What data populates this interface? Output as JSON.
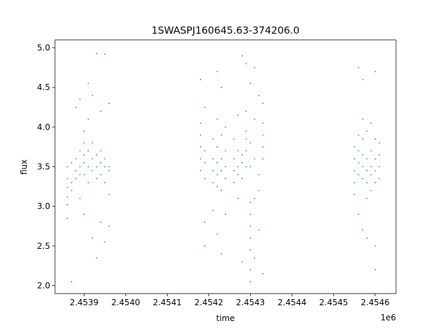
{
  "chart_data": {
    "type": "scatter",
    "title": "1SWASPJ160645.63-374206.0",
    "xlabel": "time",
    "ylabel": "flux",
    "x_offset_label": "1e6",
    "xlim": [
      2.45383,
      2.45465
    ],
    "ylim": [
      1.9,
      5.1
    ],
    "x_ticks": [
      {
        "value": 2.4539,
        "label": "2.4539"
      },
      {
        "value": 2.454,
        "label": "2.4540"
      },
      {
        "value": 2.4541,
        "label": "2.4541"
      },
      {
        "value": 2.4542,
        "label": "2.4542"
      },
      {
        "value": 2.4543,
        "label": "2.4543"
      },
      {
        "value": 2.4544,
        "label": "2.4544"
      },
      {
        "value": 2.4545,
        "label": "2.4545"
      },
      {
        "value": 2.4546,
        "label": "2.4546"
      }
    ],
    "y_ticks": [
      {
        "value": 2.0,
        "label": "2.0"
      },
      {
        "value": 2.5,
        "label": "2.5"
      },
      {
        "value": 3.0,
        "label": "3.0"
      },
      {
        "value": 3.5,
        "label": "3.5"
      },
      {
        "value": 4.0,
        "label": "4.0"
      },
      {
        "value": 4.5,
        "label": "4.5"
      },
      {
        "value": 5.0,
        "label": "5.0"
      }
    ],
    "grid": false,
    "legend": "none",
    "marker_color": "#1f77b4",
    "series": [
      {
        "points": [
          [
            2.45386,
            3.24
          ],
          [
            2.45386,
            3.12
          ],
          [
            2.45386,
            3.35
          ],
          [
            2.45386,
            3.02
          ],
          [
            2.45386,
            3.5
          ],
          [
            2.45386,
            2.85
          ],
          [
            2.45387,
            3.3
          ],
          [
            2.45387,
            3.55
          ],
          [
            2.45387,
            3.2
          ],
          [
            2.45387,
            2.05
          ],
          [
            2.45388,
            3.45
          ],
          [
            2.45388,
            3.6
          ],
          [
            2.45388,
            3.35
          ],
          [
            2.45388,
            4.25
          ],
          [
            2.45389,
            3.4
          ],
          [
            2.45389,
            3.7
          ],
          [
            2.45389,
            3.5
          ],
          [
            2.45389,
            3.1
          ],
          [
            2.45389,
            4.35
          ],
          [
            2.4539,
            3.55
          ],
          [
            2.4539,
            3.8
          ],
          [
            2.4539,
            3.4
          ],
          [
            2.4539,
            3.65
          ],
          [
            2.4539,
            3.95
          ],
          [
            2.4539,
            2.9
          ],
          [
            2.45391,
            3.5
          ],
          [
            2.45391,
            3.7
          ],
          [
            2.45391,
            3.3
          ],
          [
            2.45391,
            4.1
          ],
          [
            2.45391,
            4.55
          ],
          [
            2.45392,
            3.6
          ],
          [
            2.45392,
            3.45
          ],
          [
            2.45392,
            3.8
          ],
          [
            2.45392,
            2.6
          ],
          [
            2.45392,
            4.4
          ],
          [
            2.45393,
            3.5
          ],
          [
            2.45393,
            3.35
          ],
          [
            2.45393,
            3.65
          ],
          [
            2.45393,
            4.93
          ],
          [
            2.45393,
            2.35
          ],
          [
            2.45394,
            3.55
          ],
          [
            2.45394,
            3.4
          ],
          [
            2.45394,
            3.7
          ],
          [
            2.45394,
            4.2
          ],
          [
            2.45394,
            2.8
          ],
          [
            2.45395,
            3.5
          ],
          [
            2.45395,
            3.6
          ],
          [
            2.45395,
            3.3
          ],
          [
            2.45395,
            4.92
          ],
          [
            2.45395,
            2.55
          ],
          [
            2.45396,
            3.5
          ],
          [
            2.45396,
            3.45
          ],
          [
            2.45396,
            4.3
          ],
          [
            2.45396,
            2.75
          ],
          [
            2.45396,
            3.15
          ],
          [
            2.45418,
            3.6
          ],
          [
            2.45418,
            3.45
          ],
          [
            2.45418,
            3.75
          ],
          [
            2.45418,
            3.9
          ],
          [
            2.45418,
            4.05
          ],
          [
            2.45418,
            4.6
          ],
          [
            2.45419,
            3.55
          ],
          [
            2.45419,
            3.7
          ],
          [
            2.45419,
            3.35
          ],
          [
            2.45419,
            4.25
          ],
          [
            2.45419,
            2.8
          ],
          [
            2.45419,
            2.5
          ],
          [
            2.45421,
            3.45
          ],
          [
            2.45421,
            3.3
          ],
          [
            2.45421,
            3.6
          ],
          [
            2.45421,
            3.85
          ],
          [
            2.45421,
            2.95
          ],
          [
            2.45422,
            3.4
          ],
          [
            2.45422,
            3.55
          ],
          [
            2.45422,
            3.25
          ],
          [
            2.45422,
            3.75
          ],
          [
            2.45422,
            4.1
          ],
          [
            2.45422,
            4.7
          ],
          [
            2.45422,
            2.65
          ],
          [
            2.45423,
            3.45
          ],
          [
            2.45423,
            3.6
          ],
          [
            2.45423,
            3.2
          ],
          [
            2.45423,
            3.9
          ],
          [
            2.45423,
            4.5
          ],
          [
            2.45423,
            2.4
          ],
          [
            2.45424,
            3.5
          ],
          [
            2.45424,
            3.35
          ],
          [
            2.45424,
            3.7
          ],
          [
            2.45424,
            4.0
          ],
          [
            2.45424,
            2.9
          ],
          [
            2.45426,
            3.45
          ],
          [
            2.45426,
            3.3
          ],
          [
            2.45426,
            3.6
          ],
          [
            2.45426,
            3.85
          ],
          [
            2.45427,
            3.5
          ],
          [
            2.45427,
            3.4
          ],
          [
            2.45427,
            3.7
          ],
          [
            2.45427,
            4.15
          ],
          [
            2.45427,
            3.1
          ],
          [
            2.45428,
            3.55
          ],
          [
            2.45428,
            3.65
          ],
          [
            2.45428,
            3.35
          ],
          [
            2.45428,
            4.9
          ],
          [
            2.45428,
            2.3
          ],
          [
            2.45429,
            3.7
          ],
          [
            2.45429,
            3.85
          ],
          [
            2.45429,
            3.95
          ],
          [
            2.45429,
            4.2
          ],
          [
            2.45429,
            3.5
          ],
          [
            2.45429,
            4.8
          ],
          [
            2.4543,
            2.9
          ],
          [
            2.4543,
            2.75
          ],
          [
            2.4543,
            3.05
          ],
          [
            2.4543,
            2.6
          ],
          [
            2.4543,
            2.45
          ],
          [
            2.4543,
            3.5
          ],
          [
            2.4543,
            3.8
          ],
          [
            2.4543,
            2.2
          ],
          [
            2.4543,
            2.05
          ],
          [
            2.4543,
            4.55
          ],
          [
            2.45431,
            3.6
          ],
          [
            2.45431,
            3.1
          ],
          [
            2.45431,
            2.35
          ],
          [
            2.45431,
            4.1
          ],
          [
            2.45431,
            4.75
          ],
          [
            2.45432,
            3.4
          ],
          [
            2.45432,
            2.7
          ],
          [
            2.45432,
            3.2
          ],
          [
            2.45432,
            4.4
          ],
          [
            2.45433,
            3.9
          ],
          [
            2.45433,
            3.75
          ],
          [
            2.45433,
            4.05
          ],
          [
            2.45433,
            3.6
          ],
          [
            2.45433,
            4.3
          ],
          [
            2.45433,
            2.15
          ],
          [
            2.45455,
            3.45
          ],
          [
            2.45455,
            3.6
          ],
          [
            2.45455,
            3.3
          ],
          [
            2.45455,
            3.75
          ],
          [
            2.45455,
            3.15
          ],
          [
            2.45456,
            3.55
          ],
          [
            2.45456,
            3.4
          ],
          [
            2.45456,
            3.7
          ],
          [
            2.45456,
            3.9
          ],
          [
            2.45456,
            2.9
          ],
          [
            2.45456,
            4.75
          ],
          [
            2.45457,
            3.5
          ],
          [
            2.45457,
            3.65
          ],
          [
            2.45457,
            3.35
          ],
          [
            2.45457,
            4.1
          ],
          [
            2.45457,
            4.6
          ],
          [
            2.45457,
            2.7
          ],
          [
            2.45457,
            3.85
          ],
          [
            2.45458,
            3.45
          ],
          [
            2.45458,
            3.6
          ],
          [
            2.45458,
            3.3
          ],
          [
            2.45458,
            3.95
          ],
          [
            2.45458,
            2.6
          ],
          [
            2.45458,
            3.1
          ],
          [
            2.45459,
            3.5
          ],
          [
            2.45459,
            3.4
          ],
          [
            2.45459,
            3.7
          ],
          [
            2.45459,
            3.2
          ],
          [
            2.45459,
            4.05
          ],
          [
            2.4546,
            3.45
          ],
          [
            2.4546,
            3.6
          ],
          [
            2.4546,
            3.3
          ],
          [
            2.4546,
            4.7
          ],
          [
            2.4546,
            2.2
          ],
          [
            2.4546,
            3.85
          ],
          [
            2.4546,
            2.5
          ],
          [
            2.45461,
            3.5
          ],
          [
            2.45461,
            3.65
          ],
          [
            2.45461,
            3.35
          ],
          [
            2.45461,
            3.8
          ]
        ]
      }
    ]
  }
}
